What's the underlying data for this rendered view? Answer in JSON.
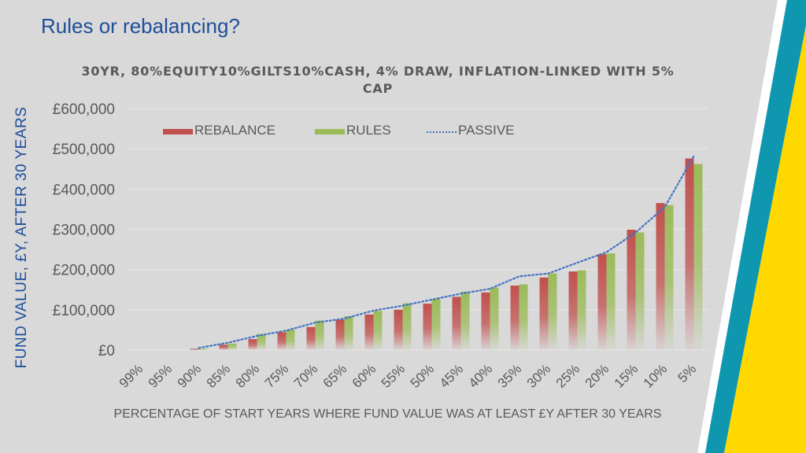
{
  "slide": {
    "title": "Rules or rebalancing?"
  },
  "colors": {
    "background": "#d9d9d9",
    "title": "#1f4e9a",
    "rebalance": "#c0504d",
    "rules": "#9bbb59",
    "passive": "#4472c4",
    "stripe_teal": "#0f97b0",
    "stripe_yellow": "#ffd800",
    "stripe_white": "#ffffff"
  },
  "chart_data": {
    "type": "bar",
    "title": "30YR, 80%EQUITY10%GILTS10%CASH, 4% DRAW, INFLATION-LINKED WITH 5% CAP",
    "ylabel": "FUND VALUE, £Y, AFTER 30 YEARS",
    "xlabel": "PERCENTAGE OF START YEARS WHERE FUND VALUE WAS AT LEAST £Y AFTER 30 YEARS",
    "ylim": [
      0,
      600000
    ],
    "y_ticks": [
      "£0",
      "£100,000",
      "£200,000",
      "£300,000",
      "£400,000",
      "£500,000",
      "£600,000"
    ],
    "y_tick_values": [
      0,
      100000,
      200000,
      300000,
      400000,
      500000,
      600000
    ],
    "grid": true,
    "legend_position": "top",
    "categories": [
      "99%",
      "95%",
      "90%",
      "85%",
      "80%",
      "75%",
      "70%",
      "65%",
      "60%",
      "55%",
      "50%",
      "45%",
      "40%",
      "35%",
      "30%",
      "25%",
      "20%",
      "15%",
      "10%",
      "5%"
    ],
    "series": [
      {
        "name": "REBALANCE",
        "type": "bar",
        "color": "#c0504d",
        "values": [
          0,
          0,
          3000,
          13000,
          27000,
          44000,
          57000,
          75000,
          88000,
          100000,
          115000,
          132000,
          143000,
          160000,
          180000,
          195000,
          238000,
          299000,
          365000,
          476000
        ]
      },
      {
        "name": "RULES",
        "type": "bar",
        "color": "#9bbb59",
        "values": [
          0,
          0,
          3000,
          16000,
          40000,
          50000,
          73000,
          84000,
          97000,
          116000,
          127000,
          145000,
          155000,
          163000,
          190000,
          198000,
          240000,
          292000,
          360000,
          462000
        ]
      },
      {
        "name": "PASSIVE",
        "type": "line",
        "color": "#4472c4",
        "values": [
          0,
          0,
          5000,
          18000,
          35000,
          48000,
          68000,
          78000,
          98000,
          110000,
          125000,
          140000,
          152000,
          183000,
          190000,
          217000,
          243000,
          292000,
          355000,
          482000
        ]
      }
    ]
  }
}
